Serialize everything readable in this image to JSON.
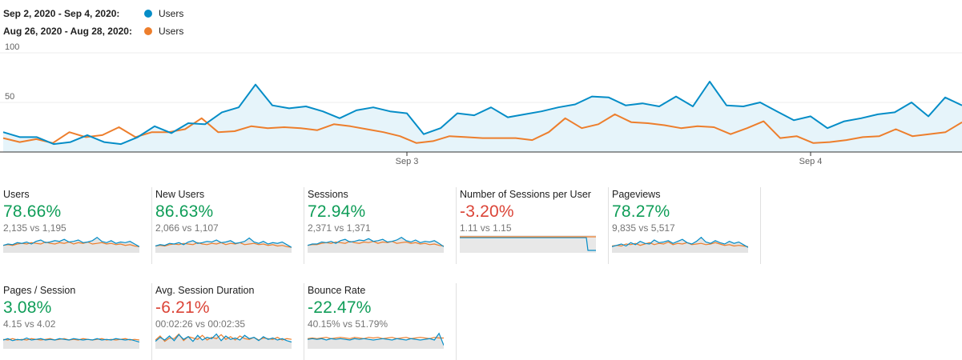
{
  "legend": [
    {
      "range": "Sep 2, 2020 - Sep 4, 2020:",
      "name": "Users",
      "color": "#058dc7"
    },
    {
      "range": "Aug 26, 2020 - Aug 28, 2020:",
      "name": "Users",
      "color": "#ed7e2c"
    }
  ],
  "chart_data": {
    "type": "line",
    "ylim": [
      0,
      100
    ],
    "yticks": [
      "100",
      "50"
    ],
    "xticks": [
      {
        "label": "Sep 3",
        "index": 24
      },
      {
        "label": "Sep 4",
        "index": 48
      }
    ],
    "series": [
      {
        "name": "Users",
        "range": "Sep 2, 2020 - Sep 4, 2020",
        "color": "#058dc7",
        "fill": true,
        "values": [
          20,
          15,
          15,
          8,
          10,
          17,
          10,
          8,
          15,
          26,
          19,
          29,
          28,
          40,
          45,
          68,
          47,
          44,
          46,
          41,
          34,
          42,
          45,
          41,
          39,
          18,
          24,
          39,
          37,
          45,
          35,
          38,
          41,
          45,
          48,
          56,
          55,
          47,
          49,
          46,
          56,
          46,
          71,
          47,
          46,
          50,
          41,
          32,
          36,
          24,
          31,
          34,
          38,
          40,
          50,
          36,
          55,
          47
        ]
      },
      {
        "name": "Users",
        "range": "Aug 26, 2020 - Aug 28, 2020",
        "color": "#ed7e2c",
        "fill": false,
        "values": [
          14,
          10,
          13,
          9,
          20,
          15,
          17,
          25,
          15,
          20,
          20,
          23,
          34,
          20,
          21,
          26,
          24,
          25,
          24,
          22,
          28,
          26,
          23,
          20,
          16,
          9,
          11,
          16,
          15,
          14,
          14,
          14,
          12,
          20,
          34,
          24,
          28,
          38,
          30,
          29,
          27,
          24,
          26,
          25,
          18,
          24,
          31,
          14,
          16,
          9,
          10,
          12,
          15,
          16,
          23,
          16,
          18,
          20,
          30
        ]
      }
    ]
  },
  "metrics": [
    {
      "name": "Users",
      "change": "78.66%",
      "direction": "pos",
      "compare": "2,135 vs 1,195",
      "spark_a": [
        10,
        12,
        11,
        14,
        13,
        15,
        12,
        16,
        18,
        14,
        15,
        17,
        16,
        19,
        15,
        16,
        18,
        14,
        15,
        17,
        22,
        16,
        14,
        17,
        13,
        15,
        14,
        16,
        12,
        8
      ],
      "spark_b": [
        10,
        11,
        10,
        12,
        13,
        12,
        14,
        13,
        12,
        15,
        13,
        12,
        14,
        13,
        15,
        12,
        14,
        13,
        15,
        12,
        13,
        14,
        12,
        13,
        11,
        12,
        10,
        11,
        9,
        8
      ],
      "flat": false
    },
    {
      "name": "New Users",
      "change": "86.63%",
      "direction": "pos",
      "compare": "2,066 vs 1,107",
      "spark_a": [
        9,
        11,
        10,
        13,
        12,
        14,
        11,
        15,
        17,
        13,
        14,
        16,
        15,
        18,
        14,
        15,
        17,
        13,
        14,
        16,
        21,
        15,
        13,
        16,
        12,
        14,
        13,
        15,
        11,
        7
      ],
      "spark_b": [
        9,
        10,
        9,
        11,
        12,
        11,
        13,
        12,
        11,
        14,
        12,
        11,
        13,
        12,
        14,
        11,
        13,
        12,
        14,
        11,
        12,
        13,
        11,
        12,
        10,
        11,
        9,
        10,
        8,
        7
      ],
      "flat": false
    },
    {
      "name": "Sessions",
      "change": "72.94%",
      "direction": "pos",
      "compare": "2,371 vs 1,371",
      "spark_a": [
        10,
        12,
        12,
        15,
        14,
        16,
        13,
        17,
        19,
        15,
        16,
        18,
        17,
        20,
        16,
        17,
        19,
        15,
        16,
        18,
        22,
        17,
        15,
        18,
        14,
        16,
        15,
        17,
        13,
        8
      ],
      "spark_b": [
        10,
        11,
        11,
        13,
        14,
        13,
        15,
        14,
        13,
        16,
        14,
        13,
        15,
        14,
        16,
        13,
        15,
        14,
        16,
        13,
        14,
        15,
        13,
        14,
        12,
        13,
        11,
        12,
        10,
        9
      ],
      "flat": false
    },
    {
      "name": "Number of Sessions per User",
      "change": "-3.20%",
      "direction": "neg",
      "compare": "1.11 vs 1.15",
      "spark_a": [],
      "spark_b": [],
      "flat": true
    },
    {
      "name": "Pageviews",
      "change": "78.27%",
      "direction": "pos",
      "compare": "9,835 vs 5,517",
      "spark_a": [
        8,
        10,
        12,
        9,
        14,
        11,
        16,
        13,
        12,
        18,
        14,
        15,
        17,
        13,
        16,
        19,
        14,
        12,
        16,
        22,
        15,
        13,
        17,
        14,
        12,
        16,
        13,
        15,
        11,
        7
      ],
      "spark_b": [
        9,
        10,
        9,
        12,
        11,
        13,
        10,
        12,
        14,
        11,
        13,
        12,
        15,
        11,
        13,
        12,
        14,
        11,
        12,
        13,
        11,
        12,
        14,
        12,
        10,
        11,
        9,
        10,
        9,
        8
      ],
      "flat": false
    },
    {
      "name": "Pages / Session",
      "change": "3.08%",
      "direction": "pos",
      "compare": "4.15 vs 4.02",
      "spark_a": [
        12,
        14,
        11,
        13,
        12,
        15,
        12,
        13,
        14,
        12,
        13,
        12,
        14,
        13,
        12,
        14,
        13,
        12,
        13,
        12,
        14,
        12,
        13,
        12,
        14,
        13,
        12,
        13,
        11,
        9
      ],
      "spark_b": [
        13,
        12,
        14,
        12,
        13,
        12,
        14,
        13,
        12,
        13,
        14,
        12,
        13,
        14,
        12,
        13,
        12,
        14,
        13,
        12,
        13,
        14,
        12,
        13,
        12,
        13,
        14,
        12,
        13,
        12
      ],
      "flat": false
    },
    {
      "name": "Avg. Session Duration",
      "change": "-6.21%",
      "direction": "neg",
      "compare": "00:02:26 vs 00:02:35",
      "spark_a": [
        10,
        16,
        12,
        18,
        11,
        20,
        13,
        17,
        10,
        19,
        12,
        16,
        14,
        21,
        11,
        18,
        13,
        15,
        12,
        19,
        14,
        16,
        11,
        17,
        13,
        15,
        12,
        14,
        11,
        9
      ],
      "spark_b": [
        12,
        18,
        10,
        15,
        14,
        21,
        11,
        17,
        15,
        13,
        19,
        12,
        16,
        14,
        20,
        13,
        17,
        12,
        18,
        14,
        13,
        16,
        12,
        15,
        14,
        13,
        16,
        12,
        14,
        13
      ],
      "flat": false
    },
    {
      "name": "Bounce Rate",
      "change": "-22.47%",
      "direction": "pos",
      "compare": "40.15% vs 51.79%",
      "spark_a": [
        13,
        14,
        13,
        14,
        12,
        14,
        13,
        14,
        13,
        12,
        14,
        13,
        14,
        13,
        12,
        13,
        14,
        13,
        12,
        14,
        13,
        12,
        14,
        13,
        12,
        13,
        14,
        12,
        22,
        4
      ],
      "spark_b": [
        14,
        15,
        14,
        15,
        16,
        14,
        15,
        16,
        15,
        14,
        16,
        15,
        14,
        16,
        15,
        16,
        14,
        15,
        16,
        14,
        15,
        16,
        14,
        15,
        16,
        15,
        14,
        16,
        15,
        15
      ],
      "flat": false
    }
  ]
}
